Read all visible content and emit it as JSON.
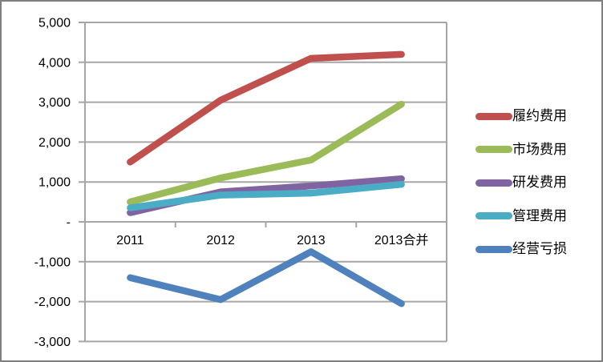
{
  "chart_data": {
    "type": "line",
    "title": "",
    "categories": [
      "2011",
      "2012",
      "2013",
      "2013合并"
    ],
    "series": [
      {
        "name": "履约费用",
        "color": "#C0504D",
        "values": [
          1500,
          3050,
          4100,
          4200
        ]
      },
      {
        "name": "市场费用",
        "color": "#9BBB59",
        "values": [
          500,
          1100,
          1550,
          2950
        ]
      },
      {
        "name": "研发费用",
        "color": "#8064A2",
        "values": [
          230,
          750,
          900,
          1080
        ]
      },
      {
        "name": "管理费用",
        "color": "#4BACC6",
        "values": [
          350,
          670,
          720,
          940
        ]
      },
      {
        "name": "经营亏损",
        "color": "#4F81BD",
        "values": [
          -1400,
          -1950,
          -750,
          -2050
        ]
      }
    ],
    "x_axis": {
      "tick_labels": [
        "2011",
        "2012",
        "2013",
        "2013合并"
      ]
    },
    "y_axis": {
      "min": -3000,
      "max": 5000,
      "step": 1000,
      "tick_labels": [
        "5,000",
        "4,000",
        "3,000",
        "2,000",
        "1,000",
        "-",
        "-1,000",
        "-2,000",
        "-3,000"
      ]
    },
    "legend": {
      "position": "right",
      "entries": [
        "履约费用",
        "市场费用",
        "研发费用",
        "管理费用",
        "经营亏损"
      ]
    },
    "grid": true,
    "styles": {
      "gridline_color": "#A6A6A6",
      "text_color": "#000000",
      "background": "#FFFFFF",
      "frame_border_color": "#7F7F7F"
    }
  }
}
